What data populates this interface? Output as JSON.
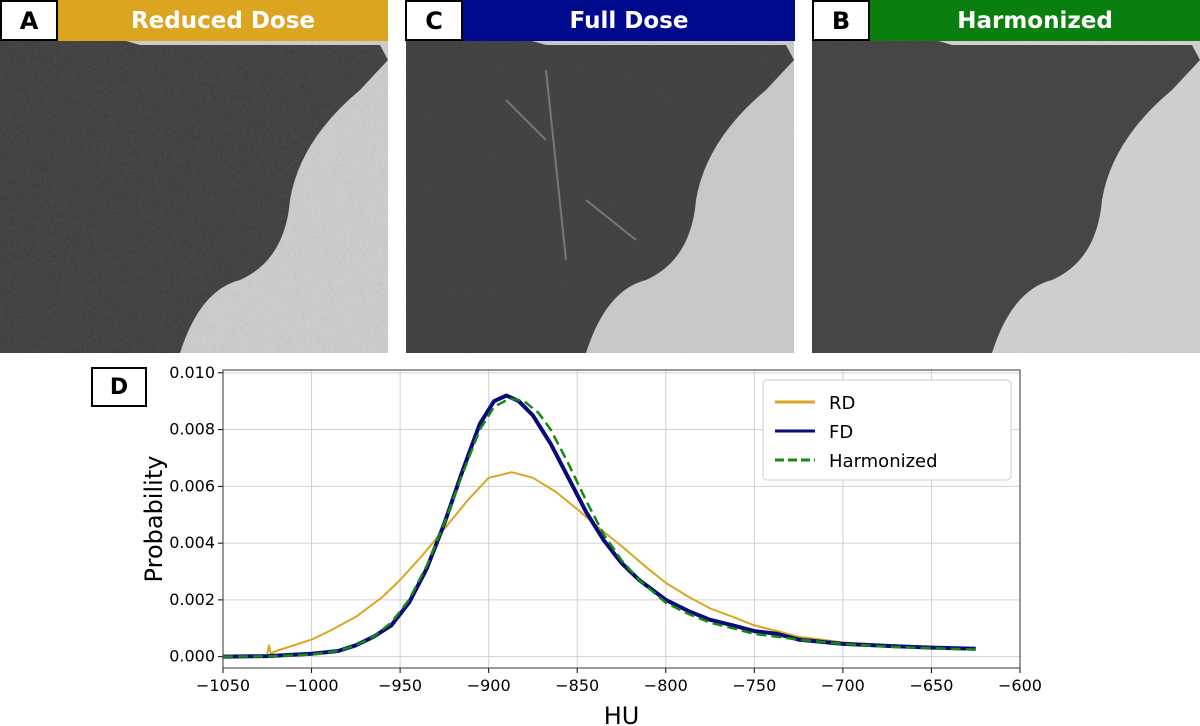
{
  "panels": [
    {
      "letter": "A",
      "title": "Reduced Dose",
      "color": "#dba520"
    },
    {
      "letter": "C",
      "title": "Full Dose",
      "color": "#000a8c"
    },
    {
      "letter": "B",
      "title": "Harmonized",
      "color": "#0a7f10"
    }
  ],
  "chart_label": "D",
  "chart_data": {
    "type": "line",
    "xlabel": "HU",
    "ylabel": "Probability",
    "xlim": [
      -1050,
      -600
    ],
    "ylim": [
      -0.0004,
      0.0101
    ],
    "xticks": [
      -1050,
      -1000,
      -950,
      -900,
      -850,
      -800,
      -750,
      -700,
      -650,
      -600
    ],
    "yticks": [
      0.0,
      0.002,
      0.004,
      0.006,
      0.008,
      0.01
    ],
    "xtick_labels": [
      "−1050",
      "−1000",
      "−950",
      "−900",
      "−850",
      "−800",
      "−750",
      "−700",
      "−650",
      "−600"
    ],
    "ytick_labels": [
      "0.000",
      "0.002",
      "0.004",
      "0.006",
      "0.008",
      "0.010"
    ],
    "grid": true,
    "legend": "top-right",
    "series": [
      {
        "name": "RD",
        "color": "#daa520",
        "style": "solid",
        "x": [
          -1025,
          -1024,
          -1023,
          -1020,
          -1010,
          -1000,
          -990,
          -975,
          -960,
          -950,
          -937,
          -925,
          -912,
          -900,
          -887,
          -875,
          -862,
          -850,
          -837,
          -825,
          -812,
          -800,
          -787,
          -775,
          -762,
          -750,
          -737,
          -725,
          -712,
          -700,
          -687,
          -675,
          -662,
          -650,
          -637,
          -625
        ],
        "y": [
          0.0001,
          0.0004,
          0.0001,
          0.0002,
          0.0004,
          0.0006,
          0.0009,
          0.0014,
          0.0021,
          0.0027,
          0.0036,
          0.0045,
          0.0055,
          0.0063,
          0.0065,
          0.0063,
          0.0058,
          0.0052,
          0.0045,
          0.0039,
          0.0032,
          0.0026,
          0.0021,
          0.0017,
          0.0014,
          0.0011,
          0.0009,
          0.0007,
          0.0006,
          0.0005,
          0.00045,
          0.0004,
          0.00035,
          0.0003,
          0.0003,
          0.00028
        ]
      },
      {
        "name": "FD",
        "color": "#0a0a7a",
        "style": "solid",
        "x": [
          -1050,
          -1025,
          -1000,
          -985,
          -975,
          -965,
          -955,
          -945,
          -935,
          -925,
          -915,
          -905,
          -897,
          -890,
          -883,
          -875,
          -865,
          -855,
          -845,
          -835,
          -825,
          -815,
          -800,
          -787,
          -775,
          -762,
          -750,
          -737,
          -725,
          -700,
          -675,
          -650,
          -625
        ],
        "y": [
          0,
          2e-05,
          0.0001,
          0.0002,
          0.0004,
          0.0007,
          0.0011,
          0.0019,
          0.0031,
          0.0047,
          0.0065,
          0.0082,
          0.009,
          0.0092,
          0.009,
          0.0085,
          0.0075,
          0.0063,
          0.0051,
          0.0041,
          0.0033,
          0.0027,
          0.002,
          0.0016,
          0.0013,
          0.0011,
          0.0009,
          0.0008,
          0.0006,
          0.00045,
          0.00038,
          0.00032,
          0.00028
        ]
      },
      {
        "name": "Harmonized",
        "color": "#138a13",
        "style": "dashed",
        "x": [
          -1050,
          -1025,
          -1000,
          -985,
          -975,
          -965,
          -955,
          -945,
          -935,
          -925,
          -915,
          -905,
          -897,
          -888,
          -880,
          -872,
          -865,
          -855,
          -845,
          -835,
          -825,
          -815,
          -800,
          -787,
          -775,
          -762,
          -750,
          -737,
          -725,
          -700,
          -675,
          -650,
          -625
        ],
        "y": [
          0,
          1e-05,
          8e-05,
          0.0002,
          0.0004,
          0.0007,
          0.0012,
          0.002,
          0.0032,
          0.0047,
          0.0064,
          0.008,
          0.0088,
          0.0091,
          0.009,
          0.0086,
          0.008,
          0.0068,
          0.0055,
          0.0043,
          0.0034,
          0.0027,
          0.0019,
          0.0015,
          0.0012,
          0.001,
          0.0008,
          0.0007,
          0.0006,
          0.00045,
          0.00035,
          0.0003,
          0.00025
        ]
      }
    ]
  }
}
